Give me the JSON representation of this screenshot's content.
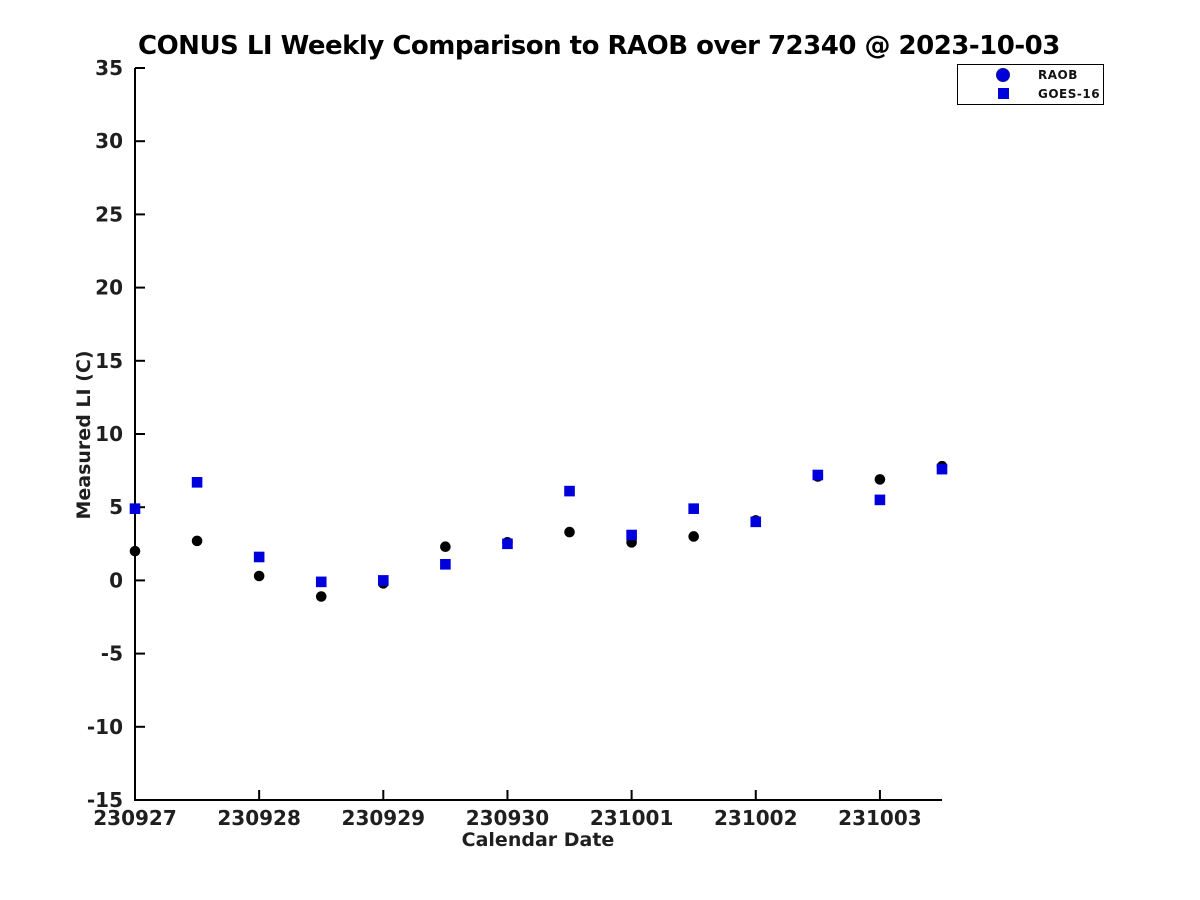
{
  "chart_data": {
    "type": "scatter",
    "title": "CONUS LI Weekly Comparison to RAOB over 72340 @ 2023-10-03",
    "xlabel": "Calendar Date",
    "ylabel": "Measured LI (C)",
    "ylim": [
      -15,
      35
    ],
    "y_ticks": [
      35,
      30,
      25,
      20,
      15,
      10,
      5,
      0,
      -5,
      -10,
      -15
    ],
    "x_range_days": 6.5,
    "x_ticks": {
      "offsets": [
        0,
        1,
        2,
        3,
        4,
        5,
        6
      ],
      "labels": [
        "230927",
        "230928",
        "230929",
        "230930",
        "231001",
        "231002",
        "231003"
      ]
    },
    "x_offsets": [
      0,
      0.5,
      1,
      1.5,
      2,
      2.5,
      3,
      3.5,
      4,
      4.5,
      5,
      5.5,
      6,
      6.5
    ],
    "series": [
      {
        "name": "RAOB",
        "marker": "circle",
        "plot_color": "#000000",
        "legend_color": "#0000dd",
        "values": [
          2.0,
          2.7,
          0.3,
          -1.1,
          -0.2,
          2.3,
          2.6,
          3.3,
          2.6,
          3.0,
          4.1,
          7.1,
          6.9,
          7.8
        ]
      },
      {
        "name": "GOES-16",
        "marker": "square",
        "plot_color": "#0000dd",
        "legend_color": "#0000dd",
        "values": [
          4.9,
          6.7,
          1.6,
          -0.1,
          0.0,
          1.1,
          2.5,
          6.1,
          3.1,
          4.9,
          4.0,
          7.2,
          5.5,
          7.6
        ]
      }
    ],
    "legend_position": "top-right",
    "grid": false,
    "axis_color": "#000000",
    "tick_label_color": "#1f1f1f"
  }
}
